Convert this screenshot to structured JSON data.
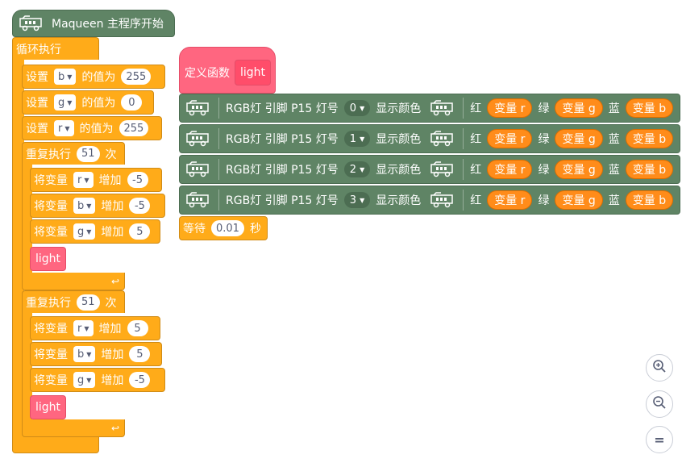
{
  "main": {
    "hat_title": "Maqueen 主程序开始",
    "forever_label": "循环执行",
    "set_blocks": [
      {
        "prefix": "设置",
        "var": "b",
        "mid": "的值为",
        "value": "255"
      },
      {
        "prefix": "设置",
        "var": "g",
        "mid": "的值为",
        "value": "0"
      },
      {
        "prefix": "设置",
        "var": "r",
        "mid": "的值为",
        "value": "255"
      }
    ],
    "repeat_1": {
      "prefix": "重复执行",
      "times": "51",
      "suffix": "次",
      "changes": [
        {
          "prefix": "将变量",
          "var": "r",
          "mid": "增加",
          "value": "-5"
        },
        {
          "prefix": "将变量",
          "var": "b",
          "mid": "增加",
          "value": "-5"
        },
        {
          "prefix": "将变量",
          "var": "g",
          "mid": "增加",
          "value": "5"
        }
      ],
      "call_label": "light"
    },
    "repeat_2": {
      "prefix": "重复执行",
      "times": "51",
      "suffix": "次",
      "changes": [
        {
          "prefix": "将变量",
          "var": "r",
          "mid": "增加",
          "value": "5"
        },
        {
          "prefix": "将变量",
          "var": "b",
          "mid": "增加",
          "value": "5"
        },
        {
          "prefix": "将变量",
          "var": "g",
          "mid": "增加",
          "value": "-5"
        }
      ],
      "call_label": "light"
    },
    "loop_arrow": "↩"
  },
  "function": {
    "define_label": "定义函数",
    "name": "light",
    "rgb_rows": [
      {
        "label": "RGB灯 引脚 P15 灯号",
        "index": "0",
        "show": "显示颜色",
        "red": "红",
        "red_var": "变量 r",
        "green": "绿",
        "green_var": "变量 g",
        "blue": "蓝",
        "blue_var": "变量 b"
      },
      {
        "label": "RGB灯 引脚 P15 灯号",
        "index": "1",
        "show": "显示颜色",
        "red": "红",
        "red_var": "变量 r",
        "green": "绿",
        "green_var": "变量 g",
        "blue": "蓝",
        "blue_var": "变量 b"
      },
      {
        "label": "RGB灯 引脚 P15 灯号",
        "index": "2",
        "show": "显示颜色",
        "red": "红",
        "red_var": "变量 r",
        "green": "绿",
        "green_var": "变量 g",
        "blue": "蓝",
        "blue_var": "变量 b"
      },
      {
        "label": "RGB灯 引脚 P15 灯号",
        "index": "3",
        "show": "显示颜色",
        "red": "红",
        "red_var": "变量 r",
        "green": "绿",
        "green_var": "变量 g",
        "blue": "蓝",
        "blue_var": "变量 b"
      }
    ],
    "wait": {
      "prefix": "等待",
      "value": "0.01",
      "suffix": "秒"
    }
  },
  "zoom": {
    "zoom_in_icon": "zoom-in-icon",
    "zoom_out_icon": "zoom-out-icon",
    "reset_icon": "reset-zoom-icon",
    "reset_glyph": "="
  },
  "colors": {
    "control": "#ffab19",
    "variable": "#ff8c1a",
    "maqueen": "#5f8465",
    "custom": "#ff6680"
  }
}
